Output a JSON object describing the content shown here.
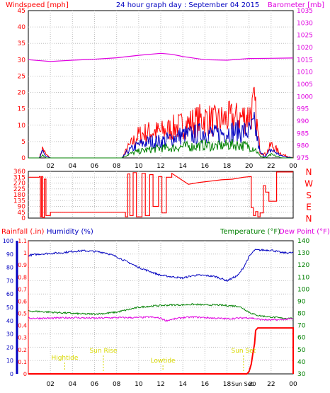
{
  "header": {
    "left_label": "Windspeed [mph]",
    "title": "24 hour graph day : September 04 2015",
    "right_label": "Barometer [mb]"
  },
  "colors": {
    "red": "#ff0000",
    "blue": "#0000c0",
    "green": "#008000",
    "magenta": "#e000e0",
    "yellow": "#d8d800",
    "grid": "#c0c0c0"
  },
  "bottom_header": {
    "rainfall_label": "Rainfall (.in)",
    "humidity_label": "Humidity (%)",
    "temperature_label": "Temperature (°F)",
    "dewpoint_label": "Dew Point (°F)"
  },
  "compass": [
    "N",
    "W",
    "S",
    "E",
    "N"
  ],
  "x_ticks": [
    "02",
    "04",
    "06",
    "08",
    "10",
    "12",
    "14",
    "16",
    "18",
    "20",
    "22",
    "00"
  ],
  "annotations": [
    {
      "text": "Hightide",
      "hour": 3.3
    },
    {
      "text": "Sun Rise",
      "hour": 6.8
    },
    {
      "text": "Lowtide",
      "hour": 12.2
    },
    {
      "text": "Sun Set",
      "hour": 19.5
    }
  ],
  "bottom_tick_labels": {
    "sunset": "Sun Set",
    "midnight_start": "20"
  },
  "chart_data": [
    {
      "type": "line",
      "title": "",
      "xlim": [
        0,
        24
      ],
      "ylim_left": [
        0,
        45
      ],
      "ylim_right": [
        975,
        1035
      ],
      "left_ticks": [
        0,
        5,
        10,
        15,
        20,
        25,
        30,
        35,
        40,
        45
      ],
      "right_ticks": [
        975,
        980,
        985,
        990,
        995,
        1000,
        1005,
        1010,
        1015,
        1020,
        1025,
        1030,
        1035
      ],
      "series": [
        {
          "axis": "right",
          "color": "magenta",
          "x": [
            0,
            2,
            4,
            6,
            8,
            10,
            12,
            13,
            14,
            16,
            18,
            20,
            22,
            24
          ],
          "y": [
            1015,
            1014.3,
            1014.8,
            1015.2,
            1015.8,
            1016.8,
            1017.6,
            1017.2,
            1016.3,
            1015.0,
            1014.8,
            1015.5,
            1015.6,
            1015.7
          ]
        },
        {
          "axis": "left",
          "color": "red",
          "noisy": true,
          "x": [
            0,
            1,
            1.3,
            1.6,
            2,
            8.5,
            9,
            10,
            11,
            12,
            13,
            14,
            15,
            16,
            17,
            18,
            19,
            20,
            20.5,
            21,
            21.5,
            22,
            23,
            24
          ],
          "y": [
            0,
            0,
            3,
            1,
            0,
            0,
            3,
            7,
            8,
            8,
            9,
            10,
            11,
            12,
            11,
            12,
            12,
            13,
            16,
            2,
            1,
            4,
            1,
            0
          ]
        },
        {
          "axis": "left",
          "color": "blue",
          "noisy": true,
          "x": [
            0,
            1,
            1.3,
            1.6,
            2,
            8.5,
            9,
            10,
            11,
            12,
            13,
            14,
            15,
            16,
            17,
            18,
            19,
            20,
            20.5,
            21,
            21.5,
            22,
            23,
            24
          ],
          "y": [
            0,
            0,
            2,
            0.5,
            0,
            0,
            2,
            4,
            5,
            5,
            6,
            7,
            7,
            8,
            7,
            8,
            8,
            8,
            10,
            1.5,
            0.5,
            2.5,
            0.5,
            0
          ]
        },
        {
          "axis": "left",
          "color": "green",
          "noisy": true,
          "x": [
            0,
            1,
            1.3,
            1.6,
            2,
            8.5,
            9,
            10,
            11,
            12,
            13,
            14,
            15,
            16,
            17,
            18,
            19,
            20,
            20.5,
            21,
            21.5,
            22,
            23,
            24
          ],
          "y": [
            0,
            0,
            1,
            0,
            0,
            0,
            1,
            2,
            2.5,
            3,
            3,
            3.5,
            3.5,
            4,
            3.5,
            4,
            4,
            3.5,
            3,
            0.5,
            0,
            1,
            0,
            0
          ]
        }
      ]
    },
    {
      "type": "line",
      "title": "",
      "xlim": [
        0,
        24
      ],
      "ylim": [
        0,
        360
      ],
      "left_ticks": [
        0,
        45,
        90,
        135,
        180,
        225,
        270,
        315,
        360
      ],
      "series": [
        {
          "color": "red",
          "x": [
            0,
            1.0,
            1.0,
            1.1,
            1.1,
            1.2,
            1.2,
            1.3,
            1.3,
            1.45,
            1.45,
            1.6,
            1.6,
            2.0,
            2.0,
            2.5,
            2.5,
            8.8,
            8.8,
            9.0,
            9.0,
            9.2,
            9.2,
            9.5,
            9.5,
            9.8,
            9.8,
            10.3,
            10.3,
            10.6,
            10.6,
            11.0,
            11.0,
            11.3,
            11.3,
            11.8,
            11.8,
            12.1,
            12.1,
            12.5,
            12.5,
            13.0,
            13.0,
            13.8,
            14.5,
            15.5,
            16.5,
            17.5,
            18.5,
            19.5,
            20.2,
            20.2,
            20.4,
            20.4,
            20.6,
            20.6,
            20.8,
            20.8,
            21.0,
            21.0,
            21.3,
            21.3,
            21.5,
            21.5,
            21.8,
            21.8,
            22.0,
            22.5,
            22.5,
            24
          ],
          "y": [
            315,
            315,
            320,
            320,
            10,
            10,
            320,
            320,
            5,
            5,
            300,
            300,
            20,
            20,
            45,
            45,
            45,
            45,
            10,
            10,
            340,
            340,
            20,
            20,
            350,
            350,
            10,
            10,
            345,
            345,
            20,
            20,
            335,
            335,
            90,
            90,
            320,
            320,
            40,
            40,
            315,
            315,
            345,
            300,
            260,
            275,
            285,
            295,
            300,
            315,
            320,
            80,
            80,
            20,
            20,
            50,
            50,
            10,
            10,
            40,
            40,
            250,
            250,
            200,
            200,
            130,
            130,
            130,
            355,
            355
          ]
        }
      ]
    },
    {
      "type": "line",
      "title": "",
      "xlim": [
        0,
        24
      ],
      "ylim_left": [
        0,
        100
      ],
      "ylim_rain": [
        0,
        1.1
      ],
      "ylim_right": [
        30,
        140
      ],
      "left_ticks": [
        0,
        10,
        20,
        30,
        40,
        50,
        60,
        70,
        80,
        90,
        100
      ],
      "rain_ticks": [
        0,
        0.1,
        0.2,
        0.3,
        0.4,
        0.5,
        0.6,
        0.7,
        0.8,
        0.9,
        1,
        1.1
      ],
      "right_ticks": [
        30,
        40,
        50,
        60,
        70,
        80,
        90,
        100,
        110,
        120,
        130,
        140
      ],
      "series": [
        {
          "axis": "left",
          "color": "blue",
          "x": [
            0,
            1,
            2,
            3,
            4,
            5,
            6,
            7,
            8,
            9,
            10,
            11,
            12,
            13,
            14,
            15,
            16,
            17,
            18,
            19,
            19.5,
            20,
            20.5,
            21,
            22,
            23,
            24
          ],
          "y": [
            89,
            90,
            90.5,
            91,
            92,
            92.5,
            92,
            91,
            88,
            84,
            80,
            77,
            74,
            73,
            72,
            74,
            74,
            73,
            70,
            74,
            80,
            88,
            93,
            93,
            93,
            91,
            91
          ]
        },
        {
          "axis": "right",
          "color": "green",
          "x": [
            0,
            1,
            2,
            3,
            4,
            5,
            6,
            7,
            8,
            9,
            10,
            11,
            12,
            13,
            14,
            15,
            16,
            17,
            18,
            19,
            19.5,
            20,
            20.5,
            21,
            22,
            23,
            24
          ],
          "y": [
            82,
            81.5,
            81,
            80.5,
            80,
            79.5,
            79.5,
            80,
            81,
            83,
            85,
            86,
            86.5,
            87,
            87,
            87.5,
            87,
            87,
            86.5,
            86,
            84,
            81,
            79,
            78,
            77,
            76,
            76
          ]
        },
        {
          "axis": "right",
          "color": "magenta",
          "x": [
            0,
            2,
            4,
            6,
            8,
            10,
            11,
            12,
            12.5,
            13,
            14,
            15,
            16,
            17,
            18,
            19,
            20,
            21,
            22,
            23,
            24
          ],
          "y": [
            76,
            76,
            76.5,
            76,
            76.5,
            76.5,
            77,
            76,
            74,
            75,
            76.5,
            77,
            76.5,
            76,
            75.5,
            76,
            76.5,
            75,
            74.5,
            75,
            75.5
          ]
        },
        {
          "axis": "rain",
          "color": "red",
          "x": [
            0,
            19.8,
            20.0,
            20.2,
            20.35,
            20.5,
            20.6,
            20.8,
            24,
            24
          ],
          "y": [
            0,
            0,
            0.02,
            0.08,
            0.17,
            0.25,
            0.36,
            0.38,
            0.38,
            0
          ]
        }
      ]
    }
  ]
}
